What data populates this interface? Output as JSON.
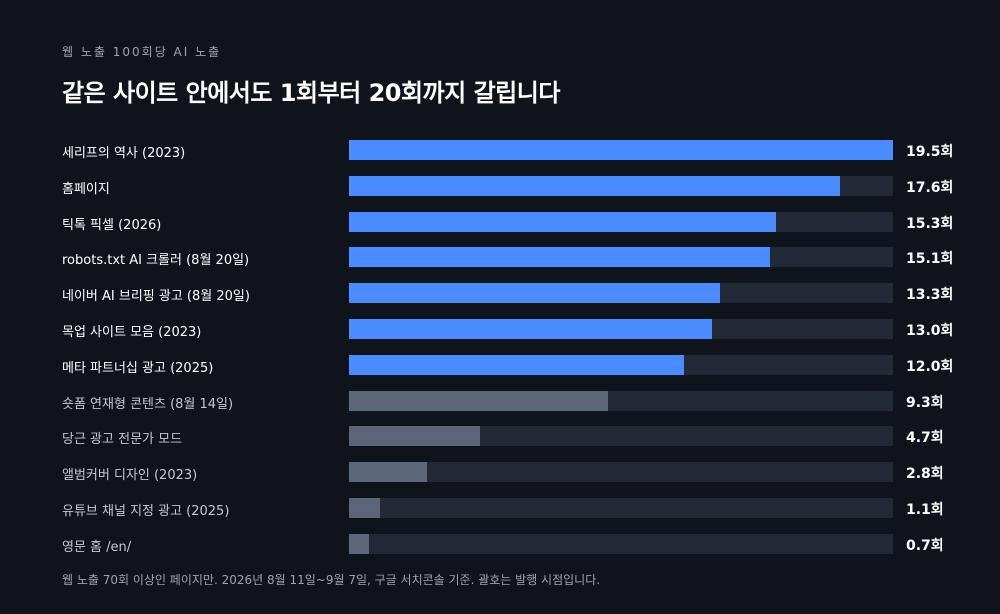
{
  "header": {
    "kicker": "웹 노출 100회당 AI 노출",
    "title": "같은 사이트 안에서도 1회부터 20회까지 갈립니다"
  },
  "footnote": "웹 노출 70회 이상인 페이지만. 2026년 8월 11일~9월 7일, 구글 서치콘솔 기준. 괄호는 발행 시점입니다.",
  "colors": {
    "highlight": "#4a8cff",
    "muted": "#5b6778",
    "track": "#232a37",
    "label_highlight": "#ffffff",
    "label_muted": "#c2c8d1"
  },
  "chart_data": {
    "type": "bar",
    "orientation": "horizontal",
    "xlim": [
      0,
      19.5
    ],
    "unit": "회",
    "highlighted_count": 7,
    "categories": [
      "세리프의 역사 (2023)",
      "홈페이지",
      "틱톡 픽셀 (2026)",
      "robots.txt AI 크롤러 (8월 20일)",
      "네이버 AI 브리핑 광고 (8월 20일)",
      "목업 사이트 모음 (2023)",
      "메타 파트너십 광고 (2025)",
      "숏폼 연재형 콘텐츠 (8월 14일)",
      "당근 광고 전문가 모드",
      "앨범커버 디자인 (2023)",
      "유튜브 채널 지정 광고 (2025)",
      "영문 홈 /en/"
    ],
    "values": [
      19.5,
      17.6,
      15.3,
      15.1,
      13.3,
      13.0,
      12.0,
      9.3,
      4.7,
      2.8,
      1.1,
      0.7
    ],
    "value_labels": [
      "19.5회",
      "17.6회",
      "15.3회",
      "15.1회",
      "13.3회",
      "13.0회",
      "12.0회",
      "9.3회",
      "4.7회",
      "2.8회",
      "1.1회",
      "0.7회"
    ]
  }
}
